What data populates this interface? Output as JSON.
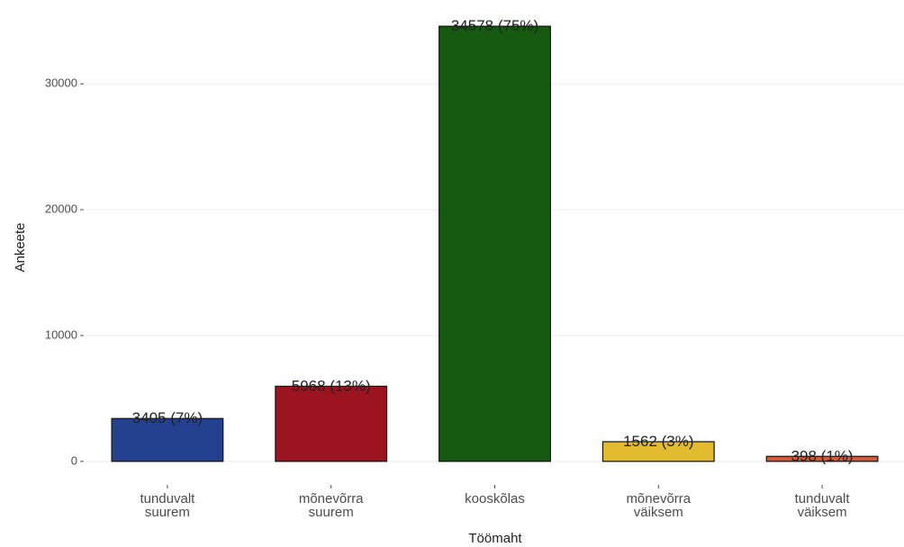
{
  "chart_data": {
    "type": "bar",
    "categories": [
      "tunduvalt\nsuurem",
      "mõnevõrra\nsuurem",
      "kooskõlas",
      "mõnevõrra\nväiksem",
      "tunduvalt\nväiksem"
    ],
    "values": [
      3405,
      5968,
      34578,
      1562,
      398
    ],
    "value_labels": [
      "3405 (7%)",
      "5968 (13%)",
      "34578 (75%)",
      "1562 (3%)",
      "398 (1%)"
    ],
    "colors": [
      "#23418f",
      "#9b1420",
      "#165a12",
      "#e2bc2e",
      "#d05a3a"
    ],
    "x_label": "Töömaht",
    "y_label": "Ankeete",
    "ylim": [
      -1729,
      36307
    ],
    "yticks": [
      0,
      10000,
      20000,
      30000
    ],
    "grid": true
  }
}
